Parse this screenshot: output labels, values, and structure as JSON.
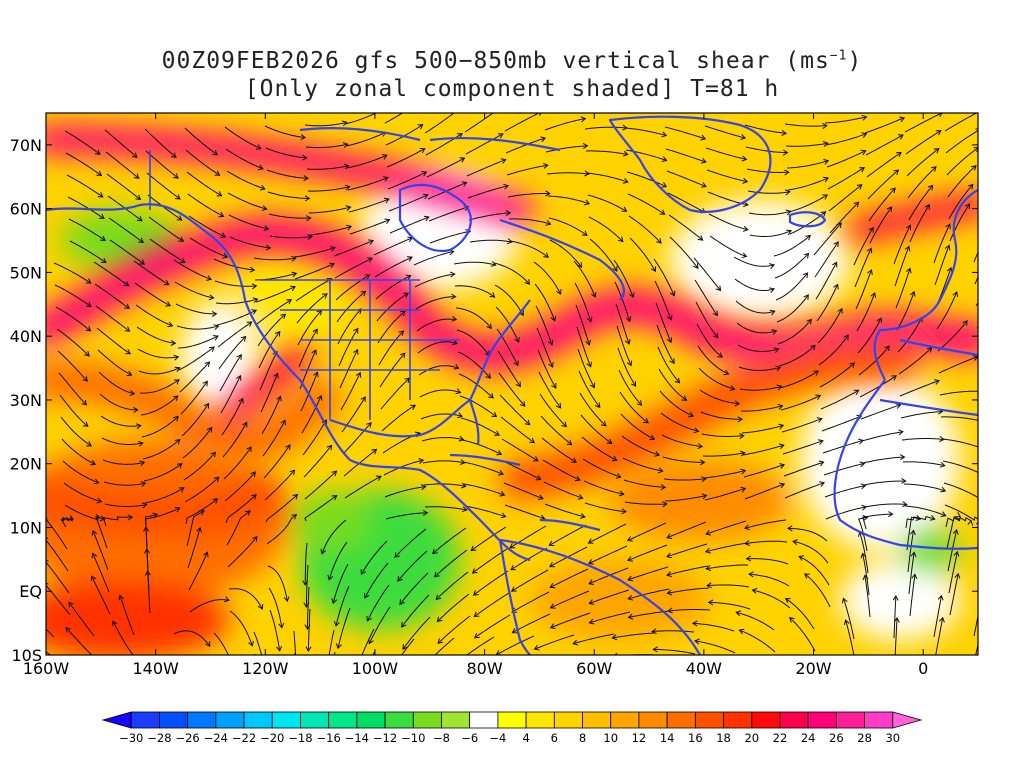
{
  "title": {
    "line1_prefix": "00Z09FEB2026 gfs 500−850mb vertical shear (ms",
    "line1_sup": "−1",
    "line1_suffix": ")",
    "line2": "[Only zonal component shaded] T=81 h"
  },
  "map": {
    "lon_range": [
      -160,
      10
    ],
    "lat_range": [
      -10,
      75
    ],
    "x_ticks": [
      {
        "value": -160,
        "label": "160W"
      },
      {
        "value": -140,
        "label": "140W"
      },
      {
        "value": -120,
        "label": "120W"
      },
      {
        "value": -100,
        "label": "100W"
      },
      {
        "value": -80,
        "label": "80W"
      },
      {
        "value": -60,
        "label": "60W"
      },
      {
        "value": -40,
        "label": "40W"
      },
      {
        "value": -20,
        "label": "20W"
      },
      {
        "value": 0,
        "label": "0"
      }
    ],
    "y_ticks": [
      {
        "value": -10,
        "label": "10S"
      },
      {
        "value": 0,
        "label": "EQ"
      },
      {
        "value": 10,
        "label": "10N"
      },
      {
        "value": 20,
        "label": "20N"
      },
      {
        "value": 30,
        "label": "30N"
      },
      {
        "value": 40,
        "label": "40N"
      },
      {
        "value": 50,
        "label": "50N"
      },
      {
        "value": 60,
        "label": "60N"
      },
      {
        "value": 70,
        "label": "70N"
      }
    ],
    "coastline_color": "#3344ee",
    "streamline_color": "#111111"
  },
  "colorbar": {
    "levels": [
      "-30",
      "-28",
      "-26",
      "-24",
      "-22",
      "-20",
      "-18",
      "-16",
      "-14",
      "-12",
      "-10",
      "-8",
      "-6",
      "-4",
      "4",
      "6",
      "8",
      "10",
      "12",
      "14",
      "16",
      "18",
      "20",
      "22",
      "24",
      "26",
      "28",
      "30"
    ],
    "colors": [
      "#1a00ff",
      "#1e3cff",
      "#0050ff",
      "#0078ff",
      "#00a0ff",
      "#00c8ff",
      "#00e6f0",
      "#00e6b4",
      "#00e68c",
      "#00dc64",
      "#3cdc3c",
      "#78dc1e",
      "#a0e632",
      "#ffffff",
      "#ffff00",
      "#ffe600",
      "#ffd200",
      "#ffbe00",
      "#ffa500",
      "#ff8c00",
      "#ff6e00",
      "#ff5000",
      "#ff3200",
      "#ff0a0a",
      "#ff0050",
      "#ff0078",
      "#ff1e96",
      "#ff3cc8",
      "#ff64dc"
    ]
  }
}
